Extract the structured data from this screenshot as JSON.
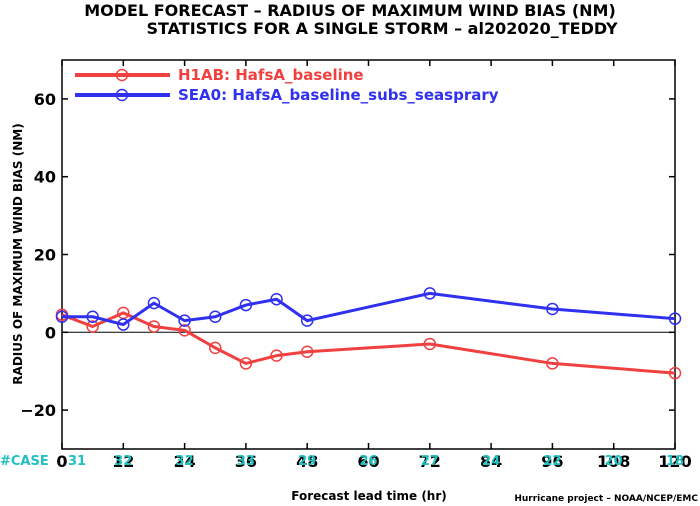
{
  "title_line1": "MODEL FORECAST – RADIUS OF MAXIMUM WIND BIAS (NM)",
  "title_line2": "STATISTICS FOR A SINGLE STORM – al202020_TEDDY",
  "credit": "Hurricane project – NOAA/NCEP/EMC",
  "case_label": "#CASE",
  "case_color": "#20c0c0",
  "chart_data": {
    "type": "line",
    "xlabel": "Forecast lead time (hr)",
    "ylabel": "RADIUS OF MAXIMUM WIND BIAS (NM)",
    "xlim": [
      0,
      120
    ],
    "ylim": [
      -30,
      70
    ],
    "xticks": [
      0,
      12,
      24,
      36,
      48,
      60,
      72,
      84,
      96,
      108,
      120
    ],
    "yticks": [
      -20,
      0,
      20,
      40,
      60
    ],
    "ytick_labels": [
      "−20",
      "0",
      "20",
      "40",
      "60"
    ],
    "grid": false,
    "legend_position": "top-left",
    "case_counts": [
      {
        "x": 0,
        "n": "31"
      },
      {
        "x": 12,
        "n": "32"
      },
      {
        "x": 24,
        "n": "32"
      },
      {
        "x": 36,
        "n": "33"
      },
      {
        "x": 48,
        "n": "29"
      },
      {
        "x": 60,
        "n": "26"
      },
      {
        "x": 72,
        "n": "27"
      },
      {
        "x": 84,
        "n": "24"
      },
      {
        "x": 96,
        "n": "22"
      },
      {
        "x": 108,
        "n": "20"
      },
      {
        "x": 120,
        "n": "18"
      }
    ],
    "series": [
      {
        "name": "H1AB: HafsA_baseline",
        "color": "#f04040",
        "x": [
          0,
          6,
          12,
          18,
          24,
          30,
          36,
          42,
          48,
          72,
          96,
          120
        ],
        "y": [
          4.5,
          1.5,
          5.0,
          1.5,
          0.5,
          -4.0,
          -8.0,
          -6.0,
          -5.0,
          -3.0,
          -8.0,
          -10.5
        ]
      },
      {
        "name": "SEA0: HafsA_baseline_subs_seasprary",
        "color": "#3030f0",
        "x": [
          0,
          6,
          12,
          18,
          24,
          30,
          36,
          42,
          48,
          72,
          96,
          120
        ],
        "y": [
          4.0,
          4.0,
          2.0,
          7.5,
          3.0,
          4.0,
          7.0,
          8.5,
          3.0,
          10.0,
          6.0,
          3.5
        ]
      }
    ]
  }
}
